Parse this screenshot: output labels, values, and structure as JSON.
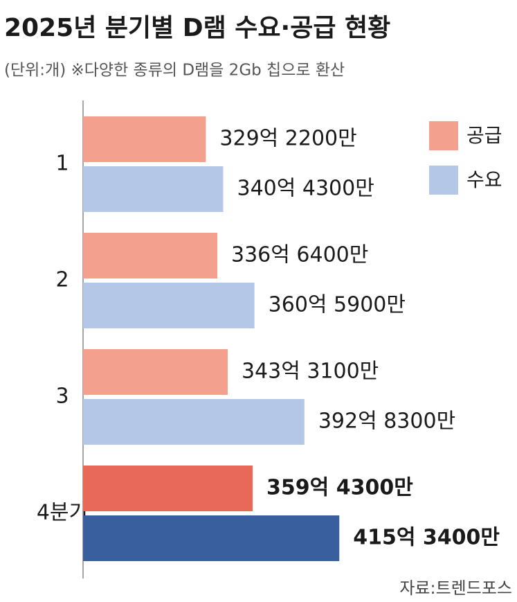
{
  "chart_data": {
    "type": "hbar",
    "title": "2025년 분기별 D램 수요·공급 현황",
    "subtitle": "(단위:개) ※다양한 종류의 D램을 2Gb 칩으로 환산",
    "source": "자료:트렌드포스",
    "categories": [
      "1",
      "2",
      "3",
      "4분기"
    ],
    "series": [
      {
        "name": "공급",
        "color": "#f4a08e",
        "colors": [
          "#f4a08e",
          "#f4a08e",
          "#f4a08e",
          "#e8695a"
        ],
        "values": [
          32922000000,
          33664000000,
          34331000000,
          35943000000
        ],
        "value_labels": [
          "329억 2200만",
          "336억 6400만",
          "343억 3100만",
          "359억 4300만"
        ]
      },
      {
        "name": "수요",
        "color": "#b4c7e7",
        "colors": [
          "#b4c7e7",
          "#b4c7e7",
          "#b4c7e7",
          "#3a5f9e"
        ],
        "values": [
          34043000000,
          36059000000,
          39283000000,
          41534000000
        ],
        "value_labels": [
          "340억 4300만",
          "360억 5900만",
          "392억 8300만",
          "415억 3400만"
        ]
      }
    ],
    "xlim": [
      25000000000,
      53000000000
    ],
    "legend": "top-right"
  }
}
